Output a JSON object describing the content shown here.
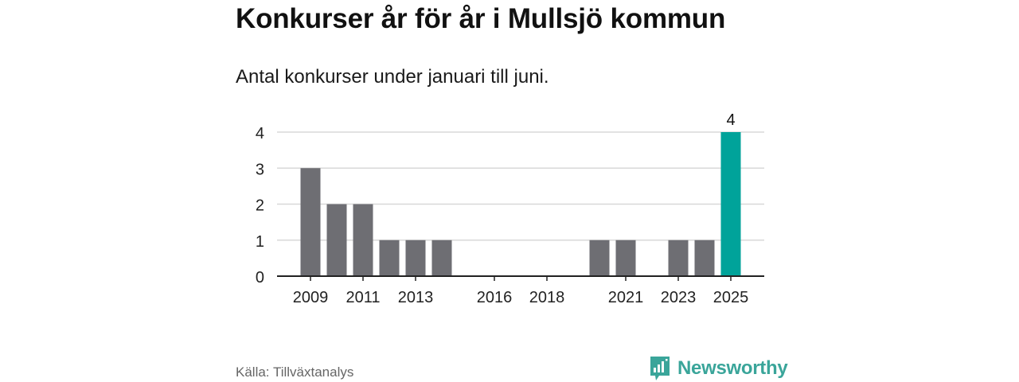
{
  "title": "Konkurser år för år i Mullsjö kommun",
  "subtitle": "Antal konkurser under januari till juni.",
  "source": "Källa: Tillväxtanalys",
  "brand": {
    "name": "Newsworthy",
    "icon": "newsworthy-logo-icon"
  },
  "colors": {
    "bar": "#6e6e73",
    "highlight": "#00a39a",
    "grid": "#d8d8d8",
    "axis": "#222222",
    "brand": "#3aa59a"
  },
  "chart_data": {
    "type": "bar",
    "x": [
      2009,
      2010,
      2011,
      2012,
      2013,
      2014,
      2015,
      2016,
      2017,
      2018,
      2019,
      2020,
      2021,
      2022,
      2023,
      2024,
      2025
    ],
    "values": [
      3,
      2,
      2,
      1,
      1,
      1,
      0,
      0,
      0,
      0,
      0,
      1,
      1,
      0,
      1,
      1,
      4
    ],
    "xticks": [
      "2009",
      "2011",
      "2013",
      "2016",
      "2018",
      "2021",
      "2023",
      "2025"
    ],
    "yticks": [
      0,
      1,
      2,
      3,
      4
    ],
    "ylim": [
      0,
      4
    ],
    "highlight_index": 16,
    "data_labels": [
      {
        "index": 16,
        "text": "4"
      }
    ],
    "grid": true,
    "xlabel": "",
    "ylabel": ""
  }
}
